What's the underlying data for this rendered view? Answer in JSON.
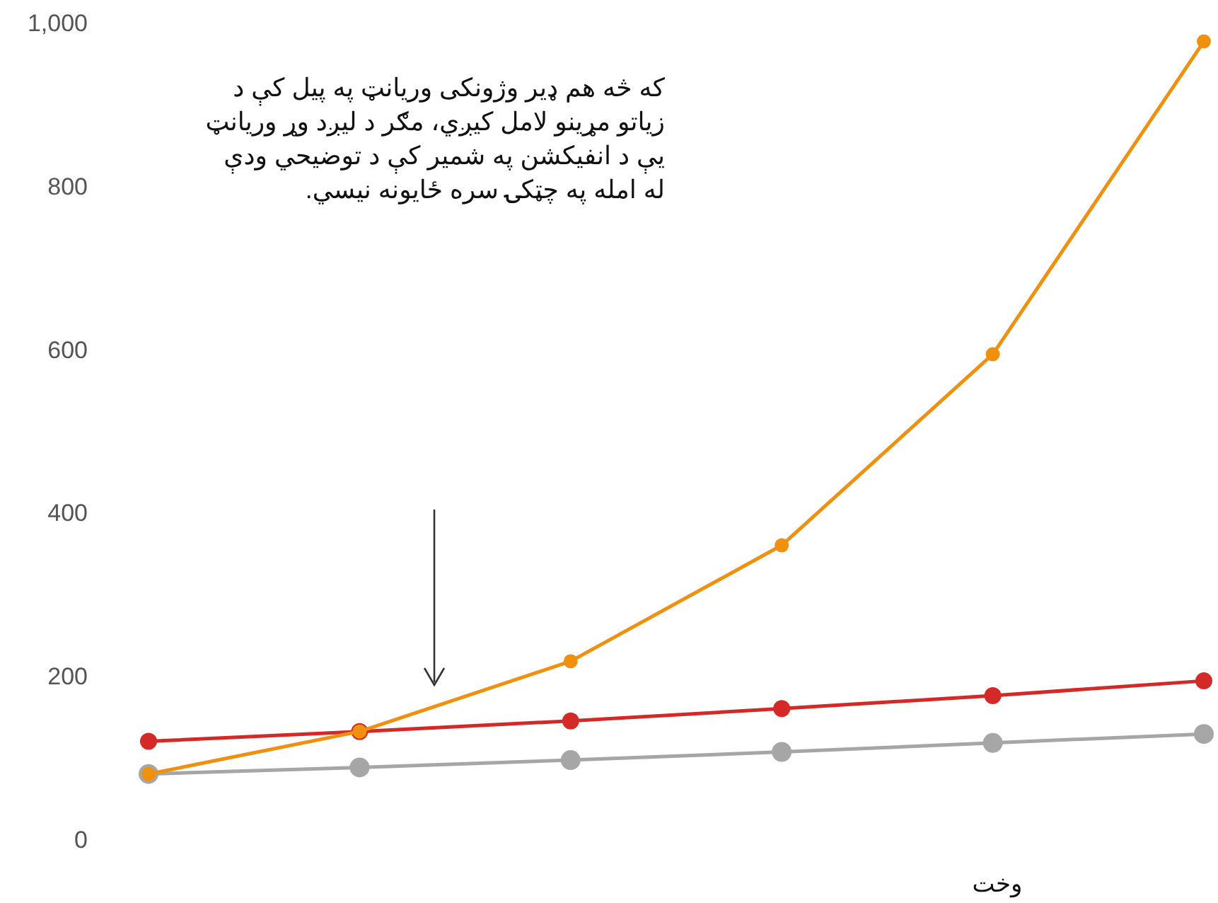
{
  "chart_data": {
    "type": "line",
    "xlabel": "وخت",
    "categories": [
      null,
      null,
      null,
      null,
      null,
      null
    ],
    "series": [
      {
        "color": "#f0900f",
        "values": [
          80,
          132,
          218,
          360,
          594,
          977
        ]
      },
      {
        "color": "#d42a27",
        "values": [
          120,
          132,
          145,
          160,
          176,
          194
        ]
      },
      {
        "color": "#a6a6a6",
        "values": [
          80,
          88,
          97,
          107,
          118,
          129
        ]
      }
    ],
    "ylim": [
      0,
      1000
    ],
    "yticks": [
      0,
      200,
      400,
      600,
      800,
      {
        "value": 1000,
        "label": "1,000"
      }
    ],
    "grid": false,
    "marker": "circle",
    "line_style": "solid",
    "annotations": [
      "که څه هم ډير وژونکی وريانټ په پيل کې د زياتو مړينو لامل کيږي، مګر د ليږد وړ وريانټ يې د انفيکشن په شمير کې د توضيحي ودې له امله په چټکۍ سره ځايونه نيسي."
    ]
  }
}
